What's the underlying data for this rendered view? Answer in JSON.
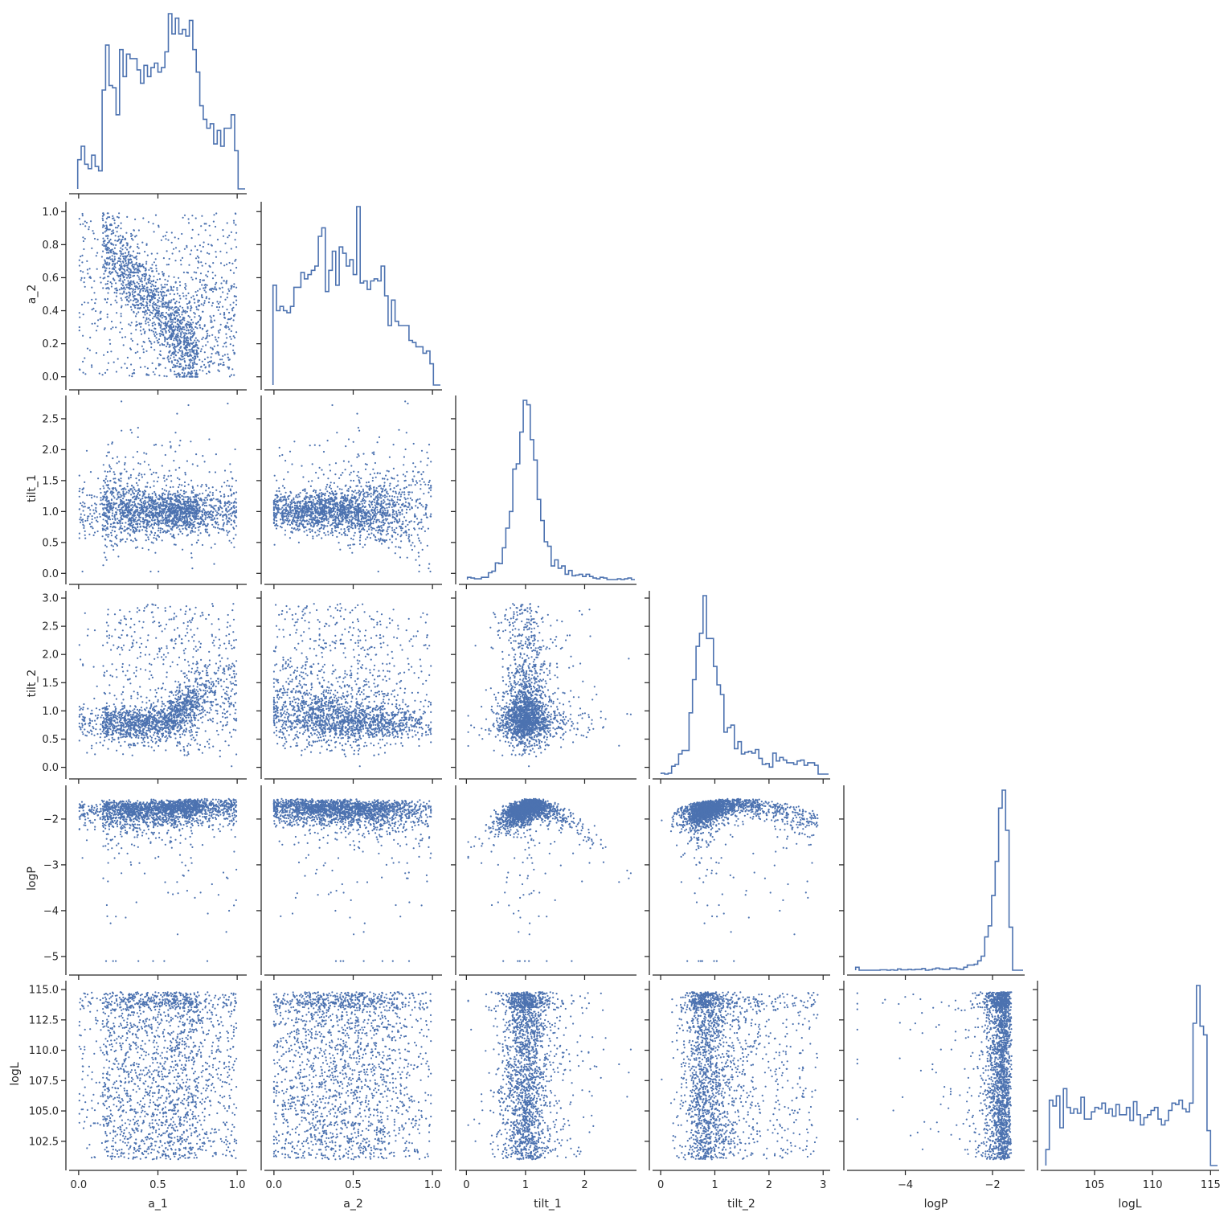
{
  "chart_data": {
    "type": "scatter",
    "kind": "pairplot-corner",
    "color": "#4c72b0",
    "diagonal": "step-histogram",
    "offdiagonal": "scatter",
    "n_samples": 2000,
    "variables": [
      {
        "name": "a_1",
        "lim": [
          -0.05,
          1.05
        ],
        "ticks": [
          0.0,
          0.5,
          1.0
        ],
        "tick_labels": [
          "0.0",
          "0.5",
          "1.0"
        ]
      },
      {
        "name": "a_2",
        "lim": [
          -0.05,
          1.05
        ],
        "ticks": [
          0.0,
          0.5,
          1.0
        ],
        "tick_labels": [
          "0.0",
          "0.5",
          "1.0"
        ],
        "y_ticks": [
          0.0,
          0.2,
          0.4,
          0.6,
          0.8,
          1.0
        ],
        "y_tick_labels": [
          "0.0",
          "0.2",
          "0.4",
          "0.6",
          "0.8",
          "1.0"
        ]
      },
      {
        "name": "tilt_1",
        "lim": [
          -0.1,
          2.85
        ],
        "ticks": [
          0,
          1,
          2
        ],
        "tick_labels": [
          "0",
          "1",
          "2"
        ],
        "y_ticks": [
          0.0,
          0.5,
          1.0,
          1.5,
          2.0,
          2.5
        ],
        "y_tick_labels": [
          "0.0",
          "0.5",
          "1.0",
          "1.5",
          "2.0",
          "2.5"
        ]
      },
      {
        "name": "tilt_2",
        "lim": [
          -0.12,
          3.1
        ],
        "ticks": [
          0,
          1,
          2,
          3
        ],
        "tick_labels": [
          "0",
          "1",
          "2",
          "3"
        ],
        "y_ticks": [
          0.0,
          0.5,
          1.0,
          1.5,
          2.0,
          2.5,
          3.0
        ],
        "y_tick_labels": [
          "0.0",
          "0.5",
          "1.0",
          "1.5",
          "2.0",
          "2.5",
          "3.0"
        ]
      },
      {
        "name": "logP",
        "lim": [
          -5.3,
          -1.3
        ],
        "ticks": [
          -4,
          -2
        ],
        "tick_labels": [
          "−4",
          "−2"
        ],
        "y_ticks": [
          -5,
          -4,
          -3,
          -2
        ],
        "y_tick_labels": [
          "−5",
          "−4",
          "−3",
          "−2"
        ]
      },
      {
        "name": "logL",
        "lim": [
          100.5,
          115.6
        ],
        "ticks": [
          105,
          110,
          115
        ],
        "tick_labels": [
          "105",
          "110",
          "115"
        ],
        "y_ticks": [
          102.5,
          105.0,
          107.5,
          110.0,
          112.5,
          115.0
        ],
        "y_tick_labels": [
          "102.5",
          "105.0",
          "107.5",
          "110.0",
          "112.5",
          "115.0"
        ]
      }
    ]
  }
}
